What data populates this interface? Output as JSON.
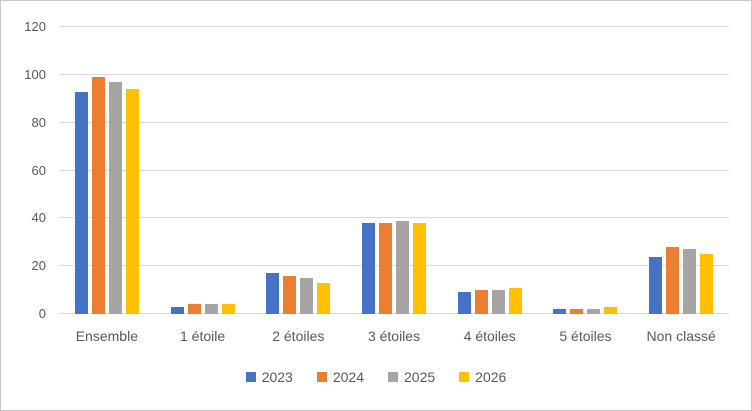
{
  "chart_data": {
    "type": "bar",
    "title": "",
    "categories": [
      "Ensemble",
      "1 étoile",
      "2 étoiles",
      "3 étoiles",
      "4 étoiles",
      "5 étoiles",
      "Non classé"
    ],
    "series": [
      {
        "name": "2023",
        "color": "#4472C4",
        "values": [
          93,
          3,
          17,
          38,
          9,
          2,
          24
        ]
      },
      {
        "name": "2024",
        "color": "#ED7D31",
        "values": [
          99,
          4,
          16,
          38,
          10,
          2,
          28
        ]
      },
      {
        "name": "2025",
        "color": "#A5A5A5",
        "values": [
          97,
          4,
          15,
          39,
          10,
          2,
          27
        ]
      },
      {
        "name": "2026",
        "color": "#FFC000",
        "values": [
          94,
          4,
          13,
          38,
          11,
          3,
          25
        ]
      }
    ],
    "xlabel": "",
    "ylabel": "",
    "ylim": [
      0,
      120
    ],
    "yticks": [
      0,
      20,
      40,
      60,
      80,
      100,
      120
    ],
    "grid": true,
    "legend_position": "bottom"
  },
  "colors": {
    "gridline": "#D9D9D9",
    "axis_text": "#595959",
    "background": "#FFFFFF",
    "frame_border": "#C9C9C9"
  }
}
